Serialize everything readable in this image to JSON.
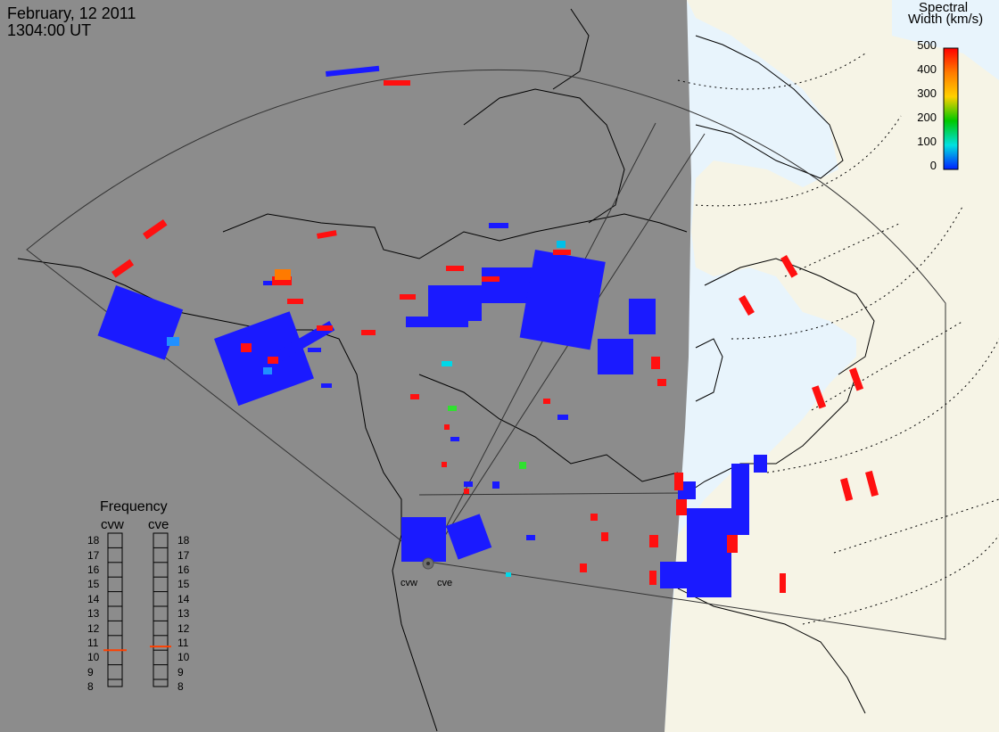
{
  "header": {
    "date": "February, 12 2011",
    "time": "1304:00 UT"
  },
  "colorbar": {
    "title_line1": "Spectral",
    "title_line2": "Width (km/s)",
    "ticks": [
      "500",
      "400",
      "300",
      "200",
      "100",
      "0"
    ],
    "colors": [
      "#ff0000",
      "#ff7a00",
      "#ffd000",
      "#00c800",
      "#00e0e0",
      "#0020ff"
    ]
  },
  "frequency": {
    "title": "Frequency",
    "cvw_label": "cvw",
    "cve_label": "cve",
    "levels": [
      "18",
      "17",
      "16",
      "15",
      "14",
      "13",
      "12",
      "11",
      "10",
      "9",
      "8"
    ],
    "cvw_value": 10.5,
    "cve_value": 10.75
  },
  "radars": {
    "west": "cvw",
    "east": "cve"
  },
  "colors": {
    "night": "#8c8c8c",
    "day_land": "#f6f4e6",
    "day_water": "#e8f4fc",
    "low_width": "#1a1aff",
    "high_width": "#ff1010",
    "freq_marker": "#ff4000"
  }
}
